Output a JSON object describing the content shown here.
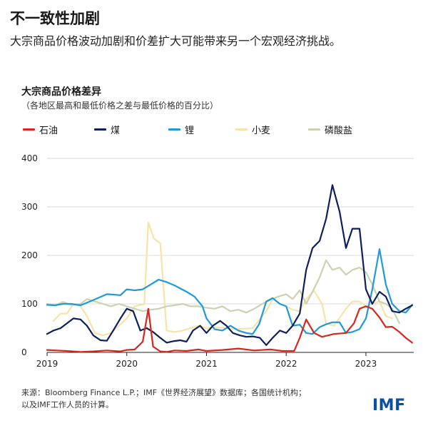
{
  "header": {
    "title": "不一致性加剧",
    "subtitle": "大宗商品价格波动加剧和价差扩大可能带来另一个宏观经济挑战。"
  },
  "footer": {
    "source_line1": "来源：Bloomberg Finance L.P.；IMF《世界经济展望》数据库；各国统计机构；",
    "source_line2": "以及IMF工作人员的计算。",
    "logo": "IMF"
  },
  "colors": {
    "oil": "#d7261e",
    "coal": "#0f1f5c",
    "lithium": "#1f9ad8",
    "wheat": "#f7e2a8",
    "phosphate": "#c9d3b1",
    "axis": "#222222",
    "grid": "#d9d9d9",
    "brand": "#0b4ea2"
  },
  "chart_data": {
    "type": "line",
    "title": "大宗商品价格差异",
    "subtitle": "（各地区最高和最低价格之差与最低价格的百分比）",
    "xlabel": "",
    "ylabel": "",
    "xlim": [
      2019.0,
      2023.6
    ],
    "ylim": [
      0,
      400
    ],
    "yticks": [
      0,
      100,
      200,
      300,
      400
    ],
    "xticks": [
      2019,
      2020,
      2021,
      2022,
      2023
    ],
    "series": [
      {
        "name": "石油",
        "key": "oil",
        "points": [
          [
            2019.0,
            5
          ],
          [
            2019.12,
            4
          ],
          [
            2019.25,
            3
          ],
          [
            2019.42,
            1
          ],
          [
            2019.58,
            2
          ],
          [
            2019.75,
            4
          ],
          [
            2019.92,
            2
          ],
          [
            2020.0,
            5
          ],
          [
            2020.1,
            6
          ],
          [
            2020.2,
            22
          ],
          [
            2020.27,
            90
          ],
          [
            2020.33,
            12
          ],
          [
            2020.42,
            2
          ],
          [
            2020.5,
            1
          ],
          [
            2020.6,
            4
          ],
          [
            2020.75,
            3
          ],
          [
            2020.9,
            6
          ],
          [
            2021.0,
            3
          ],
          [
            2021.2,
            5
          ],
          [
            2021.4,
            8
          ],
          [
            2021.6,
            4
          ],
          [
            2021.8,
            6
          ],
          [
            2021.95,
            3
          ],
          [
            2022.1,
            3
          ],
          [
            2022.17,
            30
          ],
          [
            2022.25,
            68
          ],
          [
            2022.35,
            40
          ],
          [
            2022.45,
            32
          ],
          [
            2022.6,
            38
          ],
          [
            2022.75,
            40
          ],
          [
            2022.85,
            60
          ],
          [
            2022.92,
            90
          ],
          [
            2023.0,
            95
          ],
          [
            2023.08,
            90
          ],
          [
            2023.17,
            72
          ],
          [
            2023.25,
            52
          ],
          [
            2023.33,
            53
          ],
          [
            2023.42,
            42
          ],
          [
            2023.5,
            30
          ],
          [
            2023.58,
            20
          ]
        ]
      },
      {
        "name": "煤",
        "key": "coal",
        "points": [
          [
            2019.0,
            38
          ],
          [
            2019.08,
            45
          ],
          [
            2019.17,
            50
          ],
          [
            2019.25,
            60
          ],
          [
            2019.33,
            70
          ],
          [
            2019.42,
            68
          ],
          [
            2019.5,
            55
          ],
          [
            2019.58,
            35
          ],
          [
            2019.67,
            25
          ],
          [
            2019.75,
            24
          ],
          [
            2019.83,
            45
          ],
          [
            2019.92,
            70
          ],
          [
            2020.0,
            90
          ],
          [
            2020.08,
            85
          ],
          [
            2020.17,
            45
          ],
          [
            2020.25,
            50
          ],
          [
            2020.33,
            42
          ],
          [
            2020.42,
            30
          ],
          [
            2020.5,
            20
          ],
          [
            2020.58,
            23
          ],
          [
            2020.67,
            25
          ],
          [
            2020.75,
            22
          ],
          [
            2020.83,
            45
          ],
          [
            2020.92,
            55
          ],
          [
            2021.0,
            40
          ],
          [
            2021.08,
            55
          ],
          [
            2021.17,
            65
          ],
          [
            2021.25,
            55
          ],
          [
            2021.33,
            40
          ],
          [
            2021.42,
            35
          ],
          [
            2021.5,
            32
          ],
          [
            2021.58,
            33
          ],
          [
            2021.67,
            30
          ],
          [
            2021.75,
            15
          ],
          [
            2021.83,
            30
          ],
          [
            2021.92,
            45
          ],
          [
            2022.0,
            40
          ],
          [
            2022.08,
            55
          ],
          [
            2022.17,
            80
          ],
          [
            2022.25,
            170
          ],
          [
            2022.33,
            215
          ],
          [
            2022.42,
            230
          ],
          [
            2022.5,
            275
          ],
          [
            2022.58,
            345
          ],
          [
            2022.67,
            290
          ],
          [
            2022.75,
            215
          ],
          [
            2022.83,
            255
          ],
          [
            2022.92,
            255
          ],
          [
            2023.0,
            130
          ],
          [
            2023.08,
            100
          ],
          [
            2023.17,
            125
          ],
          [
            2023.25,
            115
          ],
          [
            2023.33,
            85
          ],
          [
            2023.42,
            82
          ],
          [
            2023.5,
            90
          ],
          [
            2023.58,
            97
          ]
        ]
      },
      {
        "name": "锂",
        "key": "lithium",
        "points": [
          [
            2019.0,
            98
          ],
          [
            2019.1,
            97
          ],
          [
            2019.2,
            100
          ],
          [
            2019.3,
            100
          ],
          [
            2019.42,
            97
          ],
          [
            2019.58,
            108
          ],
          [
            2019.75,
            120
          ],
          [
            2019.92,
            118
          ],
          [
            2020.0,
            130
          ],
          [
            2020.1,
            128
          ],
          [
            2020.2,
            130
          ],
          [
            2020.3,
            140
          ],
          [
            2020.4,
            150
          ],
          [
            2020.5,
            145
          ],
          [
            2020.6,
            138
          ],
          [
            2020.75,
            125
          ],
          [
            2020.85,
            115
          ],
          [
            2020.95,
            95
          ],
          [
            2021.0,
            70
          ],
          [
            2021.1,
            48
          ],
          [
            2021.2,
            45
          ],
          [
            2021.3,
            55
          ],
          [
            2021.4,
            45
          ],
          [
            2021.5,
            40
          ],
          [
            2021.58,
            38
          ],
          [
            2021.66,
            58
          ],
          [
            2021.75,
            105
          ],
          [
            2021.83,
            112
          ],
          [
            2021.92,
            100
          ],
          [
            2022.0,
            95
          ],
          [
            2022.08,
            55
          ],
          [
            2022.17,
            57
          ],
          [
            2022.25,
            40
          ],
          [
            2022.33,
            38
          ],
          [
            2022.42,
            52
          ],
          [
            2022.5,
            58
          ],
          [
            2022.58,
            62
          ],
          [
            2022.67,
            62
          ],
          [
            2022.75,
            40
          ],
          [
            2022.83,
            42
          ],
          [
            2022.92,
            48
          ],
          [
            2023.0,
            70
          ],
          [
            2023.08,
            130
          ],
          [
            2023.17,
            213
          ],
          [
            2023.25,
            140
          ],
          [
            2023.33,
            100
          ],
          [
            2023.42,
            85
          ],
          [
            2023.5,
            82
          ],
          [
            2023.58,
            98
          ]
        ]
      },
      {
        "name": "小麦",
        "key": "wheat",
        "points": [
          [
            2019.08,
            65
          ],
          [
            2019.17,
            80
          ],
          [
            2019.25,
            80
          ],
          [
            2019.33,
            100
          ],
          [
            2019.42,
            95
          ],
          [
            2019.5,
            75
          ],
          [
            2019.6,
            40
          ],
          [
            2019.7,
            35
          ],
          [
            2019.8,
            40
          ],
          [
            2019.9,
            55
          ],
          [
            2020.0,
            70
          ],
          [
            2020.1,
            95
          ],
          [
            2020.22,
            100
          ],
          [
            2020.27,
            268
          ],
          [
            2020.34,
            235
          ],
          [
            2020.42,
            225
          ],
          [
            2020.5,
            45
          ],
          [
            2020.6,
            42
          ],
          [
            2020.7,
            45
          ],
          [
            2020.8,
            50
          ],
          [
            2020.9,
            55
          ],
          [
            2021.0,
            50
          ],
          [
            2021.1,
            52
          ],
          [
            2021.25,
            50
          ],
          [
            2021.4,
            48
          ],
          [
            2021.58,
            50
          ],
          [
            2021.75,
            85
          ],
          [
            2021.83,
            110
          ],
          [
            2021.92,
            100
          ],
          [
            2022.0,
            95
          ],
          [
            2022.08,
            88
          ],
          [
            2022.17,
            85
          ],
          [
            2022.25,
            110
          ],
          [
            2022.35,
            127
          ],
          [
            2022.45,
            100
          ],
          [
            2022.5,
            60
          ],
          [
            2022.6,
            55
          ],
          [
            2022.75,
            90
          ],
          [
            2022.83,
            105
          ],
          [
            2022.92,
            105
          ],
          [
            2023.0,
            95
          ],
          [
            2023.08,
            100
          ],
          [
            2023.17,
            105
          ],
          [
            2023.25,
            75
          ],
          [
            2023.33,
            70
          ]
        ]
      },
      {
        "name": "磷酸盐",
        "key": "phosphate",
        "points": [
          [
            2019.0,
            100
          ],
          [
            2019.1,
            97
          ],
          [
            2019.2,
            104
          ],
          [
            2019.3,
            98
          ],
          [
            2019.42,
            100
          ],
          [
            2019.5,
            110
          ],
          [
            2019.6,
            105
          ],
          [
            2019.7,
            100
          ],
          [
            2019.8,
            95
          ],
          [
            2019.9,
            100
          ],
          [
            2020.0,
            95
          ],
          [
            2020.1,
            90
          ],
          [
            2020.2,
            85
          ],
          [
            2020.3,
            88
          ],
          [
            2020.4,
            90
          ],
          [
            2020.5,
            95
          ],
          [
            2020.6,
            97
          ],
          [
            2020.7,
            100
          ],
          [
            2020.8,
            95
          ],
          [
            2020.9,
            95
          ],
          [
            2021.0,
            92
          ],
          [
            2021.1,
            90
          ],
          [
            2021.2,
            95
          ],
          [
            2021.3,
            85
          ],
          [
            2021.4,
            88
          ],
          [
            2021.5,
            82
          ],
          [
            2021.6,
            90
          ],
          [
            2021.7,
            100
          ],
          [
            2021.8,
            108
          ],
          [
            2021.9,
            115
          ],
          [
            2022.0,
            120
          ],
          [
            2022.08,
            110
          ],
          [
            2022.17,
            128
          ],
          [
            2022.25,
            100
          ],
          [
            2022.33,
            125
          ],
          [
            2022.42,
            155
          ],
          [
            2022.5,
            190
          ],
          [
            2022.58,
            170
          ],
          [
            2022.67,
            175
          ],
          [
            2022.75,
            160
          ],
          [
            2022.83,
            170
          ],
          [
            2022.92,
            175
          ],
          [
            2023.0,
            165
          ],
          [
            2023.08,
            140
          ],
          [
            2023.17,
            105
          ],
          [
            2023.25,
            100
          ],
          [
            2023.33,
            90
          ],
          [
            2023.42,
            60
          ]
        ]
      }
    ]
  }
}
